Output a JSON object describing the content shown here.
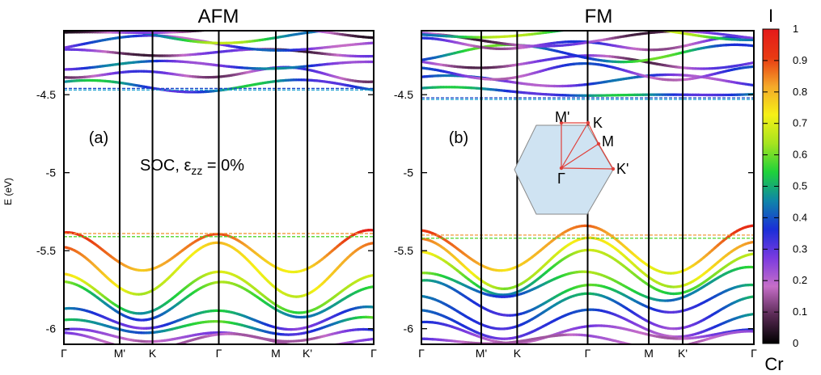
{
  "chart_data": {
    "type": "line",
    "ylabel": "E (eV)",
    "ylim": [
      -6.1,
      -4.09
    ],
    "y_ticks": [
      {
        "value": -4.5,
        "label": "-4.5"
      },
      {
        "value": -5.0,
        "label": "-5"
      },
      {
        "value": -5.5,
        "label": "-5.5"
      },
      {
        "value": -6.0,
        "label": "-6"
      }
    ],
    "colorbar": {
      "title": "I",
      "label": "Cr",
      "range": [
        0,
        1
      ],
      "ticks": [
        "0",
        "0.1",
        "0.2",
        "0.3",
        "0.4",
        "0.5",
        "0.6",
        "0.7",
        "0.8",
        "0.9",
        "1"
      ],
      "stops": [
        "#000000",
        "#5a2a55",
        "#c66ec8",
        "#7a3ae0",
        "#1a2fd8",
        "#0f86a8",
        "#1fd23a",
        "#a6e41f",
        "#f6f016",
        "#f4a82a",
        "#e83a12",
        "#e41a1a"
      ]
    },
    "panels": [
      {
        "title": "AFM",
        "tag": "(a)",
        "annotation": {
          "main": "SOC, ε",
          "sub": "zz",
          "tail": " = 0%"
        },
        "k_labels": [
          "Γ",
          "M'",
          "K",
          "Γ",
          "M",
          "K'",
          "Γ"
        ],
        "k_positions": [
          0,
          0.18,
          0.286,
          0.5,
          0.684,
          0.786,
          1.0
        ],
        "vbm": -5.37,
        "cbm": -4.47,
        "reference_lines": [
          {
            "y": -4.46,
            "color": "#1a45c8"
          },
          {
            "y": -4.47,
            "color": "#1aa0d0"
          },
          {
            "y": -5.39,
            "color": "#f09a3a"
          },
          {
            "y": -5.41,
            "color": "#4ed62a"
          }
        ],
        "conduction_bands": [
          {
            "base": -4.47,
            "amp": 0.05,
            "weight": 0.42
          },
          {
            "base": -4.4,
            "amp": 0.07,
            "weight": 0.22
          },
          {
            "base": -4.34,
            "amp": 0.06,
            "weight": 0.35
          },
          {
            "base": -4.27,
            "amp": 0.08,
            "weight": 0.18
          },
          {
            "base": -4.21,
            "amp": 0.07,
            "weight": 0.3
          },
          {
            "base": -4.15,
            "amp": 0.06,
            "weight": 0.55
          },
          {
            "base": -4.12,
            "amp": 0.05,
            "weight": 0.15
          }
        ],
        "valence_bands": [
          {
            "top": -5.37,
            "depth": 0.28,
            "weight": 0.95
          },
          {
            "top": -5.47,
            "depth": 0.3,
            "weight": 0.85
          },
          {
            "top": -5.66,
            "depth": 0.22,
            "weight": 0.72
          },
          {
            "top": -5.72,
            "depth": 0.2,
            "weight": 0.62
          },
          {
            "top": -5.86,
            "depth": 0.16,
            "weight": 0.5
          },
          {
            "top": -5.93,
            "depth": 0.12,
            "weight": 0.58
          },
          {
            "top": -6.0,
            "depth": 0.1,
            "weight": 0.32
          },
          {
            "top": -6.05,
            "depth": 0.06,
            "weight": 0.25
          }
        ]
      },
      {
        "title": "FM",
        "tag": "(b)",
        "k_labels": [
          "Γ",
          "M'",
          "K",
          "Γ",
          "M",
          "K'",
          "Γ"
        ],
        "k_positions": [
          0,
          0.18,
          0.288,
          0.5,
          0.684,
          0.786,
          1.0
        ],
        "vbm": -5.36,
        "cbm": -4.52,
        "reference_lines": [
          {
            "y": -4.52,
            "color": "#1a45c8"
          },
          {
            "y": -4.53,
            "color": "#1aa0d0"
          },
          {
            "y": -5.4,
            "color": "#f09a3a"
          },
          {
            "y": -5.42,
            "color": "#4ed62a"
          }
        ],
        "conduction_bands": [
          {
            "base": -4.52,
            "amp": 0.06,
            "weight": 0.42
          },
          {
            "base": -4.45,
            "amp": 0.08,
            "weight": 0.32
          },
          {
            "base": -4.39,
            "amp": 0.07,
            "weight": 0.28
          },
          {
            "base": -4.33,
            "amp": 0.08,
            "weight": 0.2
          },
          {
            "base": -4.27,
            "amp": 0.07,
            "weight": 0.48
          },
          {
            "base": -4.22,
            "amp": 0.08,
            "weight": 0.25
          },
          {
            "base": -4.17,
            "amp": 0.06,
            "weight": 0.18
          },
          {
            "base": -4.13,
            "amp": 0.05,
            "weight": 0.55
          }
        ],
        "valence_bands": [
          {
            "top": -5.36,
            "depth": 0.26,
            "weight": 0.92
          },
          {
            "top": -5.44,
            "depth": 0.28,
            "weight": 0.82
          },
          {
            "top": -5.52,
            "depth": 0.24,
            "weight": 0.7
          },
          {
            "top": -5.62,
            "depth": 0.2,
            "weight": 0.62
          },
          {
            "top": -5.7,
            "depth": 0.22,
            "weight": 0.55
          },
          {
            "top": -5.8,
            "depth": 0.18,
            "weight": 0.5
          },
          {
            "top": -5.9,
            "depth": 0.14,
            "weight": 0.44
          },
          {
            "top": -5.98,
            "depth": 0.1,
            "weight": 0.34
          },
          {
            "top": -6.04,
            "depth": 0.07,
            "weight": 0.27
          }
        ],
        "brillouin_zone": {
          "labels": {
            "M_prime": "M'",
            "K": "K",
            "M": "M",
            "Gamma": "Γ",
            "K_prime": "K'"
          }
        }
      }
    ]
  }
}
